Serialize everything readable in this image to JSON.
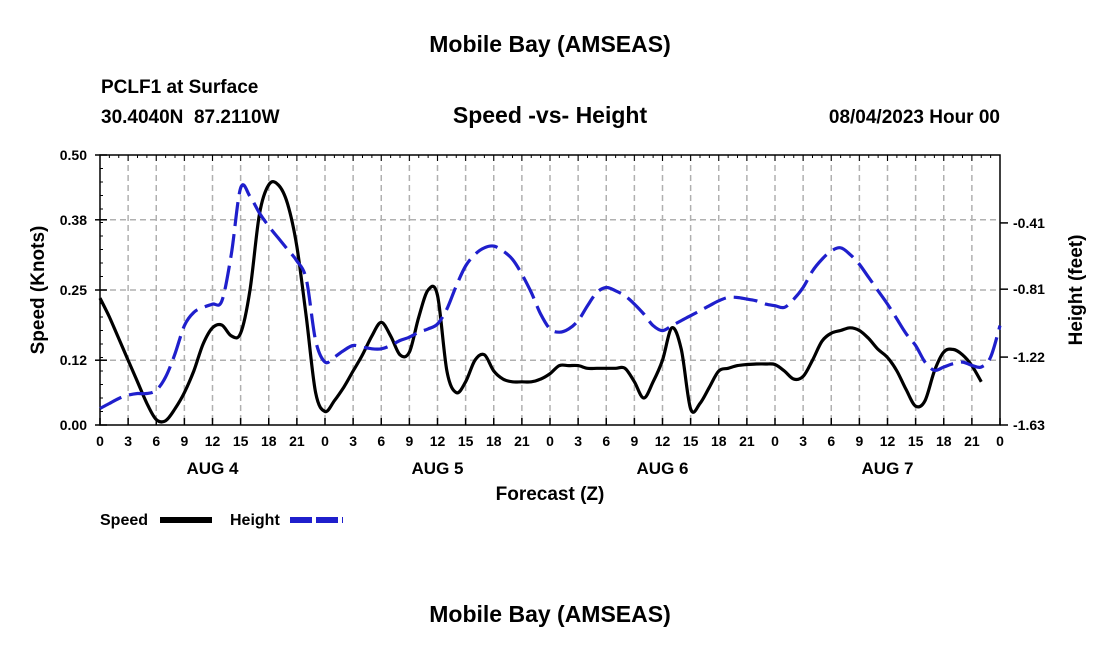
{
  "header": {
    "title": "Mobile Bay (AMSEAS)",
    "station": "PCLF1 at Surface",
    "coords": "30.4040N  87.2110W",
    "chart_title": "Speed -vs- Height",
    "datetime": "08/04/2023 Hour 00",
    "footer_title": "Mobile Bay (AMSEAS)"
  },
  "colors": {
    "speed": "#000000",
    "height": "#1f1fcc",
    "grid": "#b0b0b0"
  },
  "chart_data": {
    "type": "line",
    "title": "Speed -vs- Height",
    "xlabel": "Forecast (Z)",
    "ylabel_left": "Speed (Knots)",
    "ylabel_right": "Height (feet)",
    "x_range_hours": [
      0,
      96
    ],
    "x_ticks": [
      "0",
      "3",
      "6",
      "9",
      "12",
      "15",
      "18",
      "21",
      "0",
      "3",
      "6",
      "9",
      "12",
      "15",
      "18",
      "21",
      "0",
      "3",
      "6",
      "9",
      "12",
      "15",
      "18",
      "21",
      "0",
      "3",
      "6",
      "9",
      "12",
      "15",
      "18",
      "21",
      "0"
    ],
    "day_labels": [
      {
        "label": "AUG 4",
        "hour": 12
      },
      {
        "label": "AUG 5",
        "hour": 36
      },
      {
        "label": "AUG 6",
        "hour": 60
      },
      {
        "label": "AUG 7",
        "hour": 84
      }
    ],
    "y_left": {
      "ticks": [
        "0.00",
        "0.12",
        "0.25",
        "0.38",
        "0.50"
      ],
      "range": [
        0,
        0.5
      ]
    },
    "y_right": {
      "ticks": [
        "-1.63",
        "-1.22",
        "-0.81",
        "-0.41"
      ],
      "range": [
        -1.63,
        -0.0
      ]
    },
    "legend": {
      "speed_label": "Speed",
      "height_label": "Height",
      "placement": "below-left"
    },
    "series": [
      {
        "name": "Speed",
        "axis": "left",
        "style": "solid",
        "points": [
          [
            0,
            0.235
          ],
          [
            1,
            0.2
          ],
          [
            2,
            0.16
          ],
          [
            3,
            0.12
          ],
          [
            4,
            0.08
          ],
          [
            5,
            0.04
          ],
          [
            6,
            0.01
          ],
          [
            7,
            0.008
          ],
          [
            8,
            0.03
          ],
          [
            9,
            0.06
          ],
          [
            10,
            0.1
          ],
          [
            11,
            0.15
          ],
          [
            12,
            0.18
          ],
          [
            13,
            0.185
          ],
          [
            14,
            0.165
          ],
          [
            15,
            0.17
          ],
          [
            16,
            0.25
          ],
          [
            17,
            0.39
          ],
          [
            18,
            0.445
          ],
          [
            19,
            0.445
          ],
          [
            20,
            0.41
          ],
          [
            21,
            0.33
          ],
          [
            22,
            0.2
          ],
          [
            23,
            0.06
          ],
          [
            24,
            0.025
          ],
          [
            25,
            0.045
          ],
          [
            26,
            0.07
          ],
          [
            27,
            0.1
          ],
          [
            28,
            0.13
          ],
          [
            29,
            0.165
          ],
          [
            30,
            0.19
          ],
          [
            31,
            0.165
          ],
          [
            32,
            0.13
          ],
          [
            33,
            0.135
          ],
          [
            34,
            0.2
          ],
          [
            35,
            0.25
          ],
          [
            36,
            0.24
          ],
          [
            37,
            0.1
          ],
          [
            38,
            0.06
          ],
          [
            39,
            0.08
          ],
          [
            40,
            0.12
          ],
          [
            41,
            0.13
          ],
          [
            42,
            0.1
          ],
          [
            43,
            0.085
          ],
          [
            44,
            0.08
          ],
          [
            45,
            0.08
          ],
          [
            46,
            0.08
          ],
          [
            47,
            0.085
          ],
          [
            48,
            0.095
          ],
          [
            49,
            0.11
          ],
          [
            50,
            0.11
          ],
          [
            51,
            0.11
          ],
          [
            52,
            0.105
          ],
          [
            53,
            0.105
          ],
          [
            54,
            0.105
          ],
          [
            55,
            0.105
          ],
          [
            56,
            0.105
          ],
          [
            57,
            0.08
          ],
          [
            58,
            0.05
          ],
          [
            59,
            0.08
          ],
          [
            60,
            0.12
          ],
          [
            61,
            0.18
          ],
          [
            62,
            0.14
          ],
          [
            63,
            0.03
          ],
          [
            64,
            0.04
          ],
          [
            65,
            0.07
          ],
          [
            66,
            0.1
          ],
          [
            67,
            0.105
          ],
          [
            68,
            0.11
          ],
          [
            69,
            0.112
          ],
          [
            70,
            0.113
          ],
          [
            71,
            0.113
          ],
          [
            72,
            0.112
          ],
          [
            73,
            0.1
          ],
          [
            74,
            0.085
          ],
          [
            75,
            0.09
          ],
          [
            76,
            0.12
          ],
          [
            77,
            0.155
          ],
          [
            78,
            0.17
          ],
          [
            79,
            0.175
          ],
          [
            80,
            0.18
          ],
          [
            81,
            0.175
          ],
          [
            82,
            0.16
          ],
          [
            83,
            0.14
          ],
          [
            84,
            0.125
          ],
          [
            85,
            0.1
          ],
          [
            86,
            0.065
          ],
          [
            87,
            0.035
          ],
          [
            88,
            0.045
          ],
          [
            89,
            0.1
          ],
          [
            90,
            0.135
          ],
          [
            91,
            0.14
          ],
          [
            92,
            0.13
          ],
          [
            93,
            0.11
          ],
          [
            94,
            0.08
          ]
        ]
      },
      {
        "name": "Height",
        "axis": "right",
        "style": "dashed",
        "points": [
          [
            0,
            -1.53
          ],
          [
            1,
            -1.5
          ],
          [
            2,
            -1.47
          ],
          [
            3,
            -1.45
          ],
          [
            4,
            -1.44
          ],
          [
            5,
            -1.44
          ],
          [
            6,
            -1.42
          ],
          [
            7,
            -1.34
          ],
          [
            8,
            -1.2
          ],
          [
            9,
            -1.03
          ],
          [
            10,
            -0.95
          ],
          [
            11,
            -0.92
          ],
          [
            12,
            -0.9
          ],
          [
            13,
            -0.88
          ],
          [
            14,
            -0.6
          ],
          [
            15,
            -0.2
          ],
          [
            16,
            -0.25
          ],
          [
            17,
            -0.35
          ],
          [
            18,
            -0.43
          ],
          [
            19,
            -0.5
          ],
          [
            20,
            -0.57
          ],
          [
            21,
            -0.64
          ],
          [
            22,
            -0.75
          ],
          [
            23,
            -1.12
          ],
          [
            24,
            -1.25
          ],
          [
            25,
            -1.22
          ],
          [
            26,
            -1.18
          ],
          [
            27,
            -1.15
          ],
          [
            28,
            -1.16
          ],
          [
            29,
            -1.17
          ],
          [
            30,
            -1.17
          ],
          [
            31,
            -1.15
          ],
          [
            32,
            -1.12
          ],
          [
            33,
            -1.1
          ],
          [
            34,
            -1.07
          ],
          [
            35,
            -1.05
          ],
          [
            36,
            -1.02
          ],
          [
            37,
            -0.93
          ],
          [
            38,
            -0.79
          ],
          [
            39,
            -0.67
          ],
          [
            40,
            -0.6
          ],
          [
            41,
            -0.56
          ],
          [
            42,
            -0.55
          ],
          [
            43,
            -0.58
          ],
          [
            44,
            -0.63
          ],
          [
            45,
            -0.72
          ],
          [
            46,
            -0.83
          ],
          [
            47,
            -0.96
          ],
          [
            48,
            -1.05
          ],
          [
            49,
            -1.07
          ],
          [
            50,
            -1.05
          ],
          [
            51,
            -1.0
          ],
          [
            52,
            -0.91
          ],
          [
            53,
            -0.83
          ],
          [
            54,
            -0.8
          ],
          [
            55,
            -0.82
          ],
          [
            56,
            -0.85
          ],
          [
            57,
            -0.9
          ],
          [
            58,
            -0.96
          ],
          [
            59,
            -1.03
          ],
          [
            60,
            -1.06
          ],
          [
            61,
            -1.03
          ],
          [
            62,
            -1.0
          ],
          [
            63,
            -0.97
          ],
          [
            64,
            -0.94
          ],
          [
            65,
            -0.91
          ],
          [
            66,
            -0.88
          ],
          [
            67,
            -0.86
          ],
          [
            68,
            -0.86
          ],
          [
            69,
            -0.87
          ],
          [
            70,
            -0.88
          ],
          [
            71,
            -0.9
          ],
          [
            72,
            -0.91
          ],
          [
            73,
            -0.92
          ],
          [
            74,
            -0.87
          ],
          [
            75,
            -0.8
          ],
          [
            76,
            -0.7
          ],
          [
            77,
            -0.63
          ],
          [
            78,
            -0.58
          ],
          [
            79,
            -0.56
          ],
          [
            80,
            -0.6
          ],
          [
            81,
            -0.66
          ],
          [
            82,
            -0.74
          ],
          [
            83,
            -0.82
          ],
          [
            84,
            -0.9
          ],
          [
            85,
            -0.99
          ],
          [
            86,
            -1.08
          ],
          [
            87,
            -1.15
          ],
          [
            88,
            -1.25
          ],
          [
            89,
            -1.3
          ],
          [
            90,
            -1.28
          ],
          [
            91,
            -1.26
          ],
          [
            92,
            -1.25
          ],
          [
            93,
            -1.27
          ],
          [
            94,
            -1.28
          ],
          [
            95,
            -1.22
          ],
          [
            96,
            -1.03
          ]
        ]
      }
    ]
  }
}
